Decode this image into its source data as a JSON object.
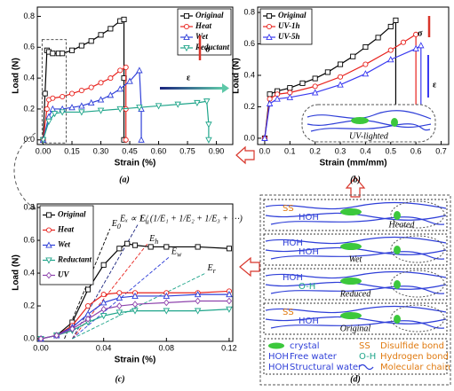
{
  "chart_data": [
    {
      "type": "line",
      "caption": "(a)",
      "xlabel": "Strain (%)",
      "ylabel": "Load (N)",
      "xlim": [
        -0.03,
        0.985
      ],
      "ylim": [
        -0.03,
        0.86
      ],
      "xticks": [
        {
          "value": 0,
          "label": "0.00"
        },
        0.15,
        {
          "value": 0.3,
          "label": "0.30"
        },
        0.45,
        {
          "value": 0.6,
          "label": "0.60"
        },
        0.75,
        {
          "value": 0.9,
          "label": "0.90"
        }
      ],
      "yticks": [
        {
          "value": 0,
          "label": "0.0"
        },
        0.2,
        0.4,
        0.6,
        0.8
      ],
      "legend": "upper right",
      "series": [
        {
          "name": "Original",
          "color": "#000000",
          "marker": "square",
          "x": [
            0,
            0.01,
            0.02,
            0.03,
            0.05,
            0.08,
            0.1,
            0.15,
            0.2,
            0.25,
            0.3,
            0.35,
            0.4,
            0.42,
            0.42,
            0.42
          ],
          "values": [
            0,
            0.3,
            0.58,
            0.57,
            0.56,
            0.56,
            0.56,
            0.58,
            0.61,
            0.64,
            0.68,
            0.72,
            0.77,
            0.78,
            0.4,
            0
          ]
        },
        {
          "name": "Heat",
          "color": "#e8231e",
          "marker": "circle",
          "x": [
            0,
            0.02,
            0.03,
            0.05,
            0.1,
            0.15,
            0.2,
            0.25,
            0.3,
            0.35,
            0.4,
            0.43,
            0.43,
            0.43
          ],
          "values": [
            0,
            0.2,
            0.26,
            0.27,
            0.28,
            0.3,
            0.32,
            0.34,
            0.37,
            0.4,
            0.45,
            0.47,
            0.2,
            0
          ]
        },
        {
          "name": "Wet",
          "color": "#2f3fd8",
          "marker": "triangle",
          "x": [
            0,
            0.03,
            0.05,
            0.1,
            0.15,
            0.2,
            0.25,
            0.3,
            0.35,
            0.4,
            0.45,
            0.5,
            0.51,
            0.51
          ],
          "values": [
            0,
            0.15,
            0.2,
            0.2,
            0.21,
            0.22,
            0.24,
            0.26,
            0.29,
            0.33,
            0.38,
            0.45,
            0.2,
            0
          ]
        },
        {
          "name": "Reductant",
          "color": "#1fa58a",
          "marker": "tdown",
          "x": [
            0,
            0.03,
            0.06,
            0.1,
            0.2,
            0.3,
            0.4,
            0.5,
            0.6,
            0.7,
            0.8,
            0.85,
            0.86,
            0.86
          ],
          "values": [
            0,
            0.12,
            0.17,
            0.18,
            0.18,
            0.19,
            0.2,
            0.21,
            0.22,
            0.23,
            0.24,
            0.25,
            0.1,
            0
          ]
        }
      ],
      "annotations": [
        "σ",
        "ε"
      ]
    },
    {
      "type": "line",
      "caption": "(b)",
      "xlabel": "Strain (mm/mm)",
      "ylabel": "Load (N)",
      "xlim": [
        -0.028,
        0.73
      ],
      "ylim": [
        -0.04,
        0.834
      ],
      "xticks": [
        {
          "value": 0,
          "label": "0.0"
        },
        0.1,
        0.2,
        0.3,
        0.4,
        0.5,
        0.6,
        0.7
      ],
      "yticks": [
        {
          "value": 0,
          "label": "0.0"
        },
        0.2,
        0.4,
        0.6,
        0.8
      ],
      "legend": "upper left",
      "series": [
        {
          "name": "Original",
          "color": "#000000",
          "marker": "square",
          "x": [
            0,
            0.02,
            0.05,
            0.1,
            0.15,
            0.2,
            0.25,
            0.3,
            0.35,
            0.4,
            0.45,
            0.5,
            0.52,
            0.52
          ],
          "values": [
            0,
            0.28,
            0.3,
            0.32,
            0.35,
            0.38,
            0.42,
            0.47,
            0.52,
            0.58,
            0.64,
            0.71,
            0.75,
            0
          ]
        },
        {
          "name": "UV-1h",
          "color": "#e8231e",
          "marker": "circle",
          "x": [
            0,
            0.02,
            0.05,
            0.1,
            0.2,
            0.3,
            0.4,
            0.5,
            0.55,
            0.6,
            0.6
          ],
          "values": [
            0,
            0.25,
            0.28,
            0.29,
            0.33,
            0.39,
            0.47,
            0.56,
            0.61,
            0.66,
            0
          ]
        },
        {
          "name": "UV-5h",
          "color": "#3a3af0",
          "marker": "triangle",
          "x": [
            0,
            0.02,
            0.05,
            0.1,
            0.2,
            0.3,
            0.4,
            0.5,
            0.6,
            0.62,
            0.62
          ],
          "values": [
            0,
            0.22,
            0.25,
            0.26,
            0.29,
            0.34,
            0.41,
            0.5,
            0.57,
            0.59,
            0
          ]
        }
      ],
      "annotations": [
        "σ",
        "ε",
        "UV-lighted"
      ]
    },
    {
      "type": "line",
      "caption": "(c)",
      "xlabel": "Strain (%)",
      "ylabel": "Load (N)",
      "xlim": [
        -0.0023,
        0.1223
      ],
      "ylim": [
        -0.016,
        0.822
      ],
      "xticks": [
        {
          "value": 0,
          "label": "0.00"
        },
        0.04,
        0.08,
        0.12
      ],
      "yticks": [
        {
          "value": 0,
          "label": "0.0"
        },
        0.2,
        0.4,
        0.6,
        0.8
      ],
      "legend": "upper left",
      "series": [
        {
          "name": "Original",
          "color": "#000000",
          "marker": "square",
          "x": [
            0,
            0.01,
            0.02,
            0.03,
            0.04,
            0.05,
            0.055,
            0.06,
            0.07,
            0.08,
            0.1,
            0.12
          ],
          "values": [
            0,
            0.02,
            0.1,
            0.3,
            0.45,
            0.55,
            0.58,
            0.57,
            0.56,
            0.56,
            0.56,
            0.55
          ]
        },
        {
          "name": "Heat",
          "color": "#e8231e",
          "marker": "circle",
          "x": [
            0,
            0.01,
            0.02,
            0.03,
            0.04,
            0.05,
            0.06,
            0.08,
            0.1,
            0.12
          ],
          "values": [
            0,
            0.02,
            0.08,
            0.2,
            0.27,
            0.28,
            0.28,
            0.28,
            0.28,
            0.29
          ]
        },
        {
          "name": "Wet",
          "color": "#2f3fd8",
          "marker": "triangle",
          "x": [
            0,
            0.01,
            0.02,
            0.03,
            0.04,
            0.05,
            0.06,
            0.08,
            0.1,
            0.12
          ],
          "values": [
            0,
            0.02,
            0.07,
            0.15,
            0.22,
            0.25,
            0.26,
            0.26,
            0.27,
            0.27
          ]
        },
        {
          "name": "Reductant",
          "color": "#1fa58a",
          "marker": "tdown",
          "x": [
            0,
            0.01,
            0.02,
            0.03,
            0.04,
            0.05,
            0.06,
            0.08,
            0.1,
            0.12
          ],
          "values": [
            0,
            0.02,
            0.05,
            0.1,
            0.14,
            0.16,
            0.17,
            0.17,
            0.17,
            0.18
          ]
        },
        {
          "name": "UV",
          "color": "#8e44ad",
          "marker": "diamond",
          "x": [
            0,
            0.01,
            0.02,
            0.03,
            0.04,
            0.05,
            0.06,
            0.08,
            0.1,
            0.12
          ],
          "values": [
            0,
            0.02,
            0.06,
            0.12,
            0.18,
            0.2,
            0.21,
            0.22,
            0.23,
            0.23
          ]
        }
      ],
      "fit_lines": [
        {
          "symbol": "E",
          "sub": "0",
          "color": "#000000",
          "x": [
            0.015,
            0.044
          ],
          "values": [
            0,
            0.67
          ]
        },
        {
          "symbol": "E",
          "sub": "u",
          "color": "#1a237e",
          "x": [
            0.02,
            0.062
          ],
          "values": [
            0,
            0.7
          ]
        },
        {
          "symbol": "E",
          "sub": "h",
          "color": "#e8231e",
          "x": [
            0.02,
            0.068
          ],
          "values": [
            0,
            0.58
          ]
        },
        {
          "symbol": "E",
          "sub": "w",
          "color": "#2f3fd8",
          "x": [
            0.02,
            0.082
          ],
          "values": [
            0,
            0.5
          ]
        },
        {
          "symbol": "E",
          "sub": "r",
          "color": "#1fa58a",
          "x": [
            0.02,
            0.105
          ],
          "values": [
            0,
            0.4
          ]
        }
      ],
      "formula": "Eₓ ∝ 1 / (1/E₁ + 1/E₂ + 1/E₃ + ⋯)"
    }
  ],
  "diagram": {
    "caption": "(d)",
    "panels": [
      {
        "label": "Heated",
        "tags": [
          "SS",
          "HOH"
        ]
      },
      {
        "label": "Wet",
        "tags": [
          "HOH",
          "HOH"
        ]
      },
      {
        "label": "Reduced",
        "tags": [
          "HOH",
          "O-H"
        ]
      },
      {
        "label": "Original",
        "tags": [
          "SS",
          "HOH"
        ]
      }
    ],
    "legend": [
      {
        "label": "crystal"
      },
      {
        "symbol": "SS",
        "label": "Disulfide bond"
      },
      {
        "symbol": "HOH",
        "label": "Free water"
      },
      {
        "symbol": "O-H",
        "label": "Hydrogen bond"
      },
      {
        "symbol": "HOH",
        "label": "Structural water"
      },
      {
        "label": "Molecular chain"
      }
    ]
  }
}
